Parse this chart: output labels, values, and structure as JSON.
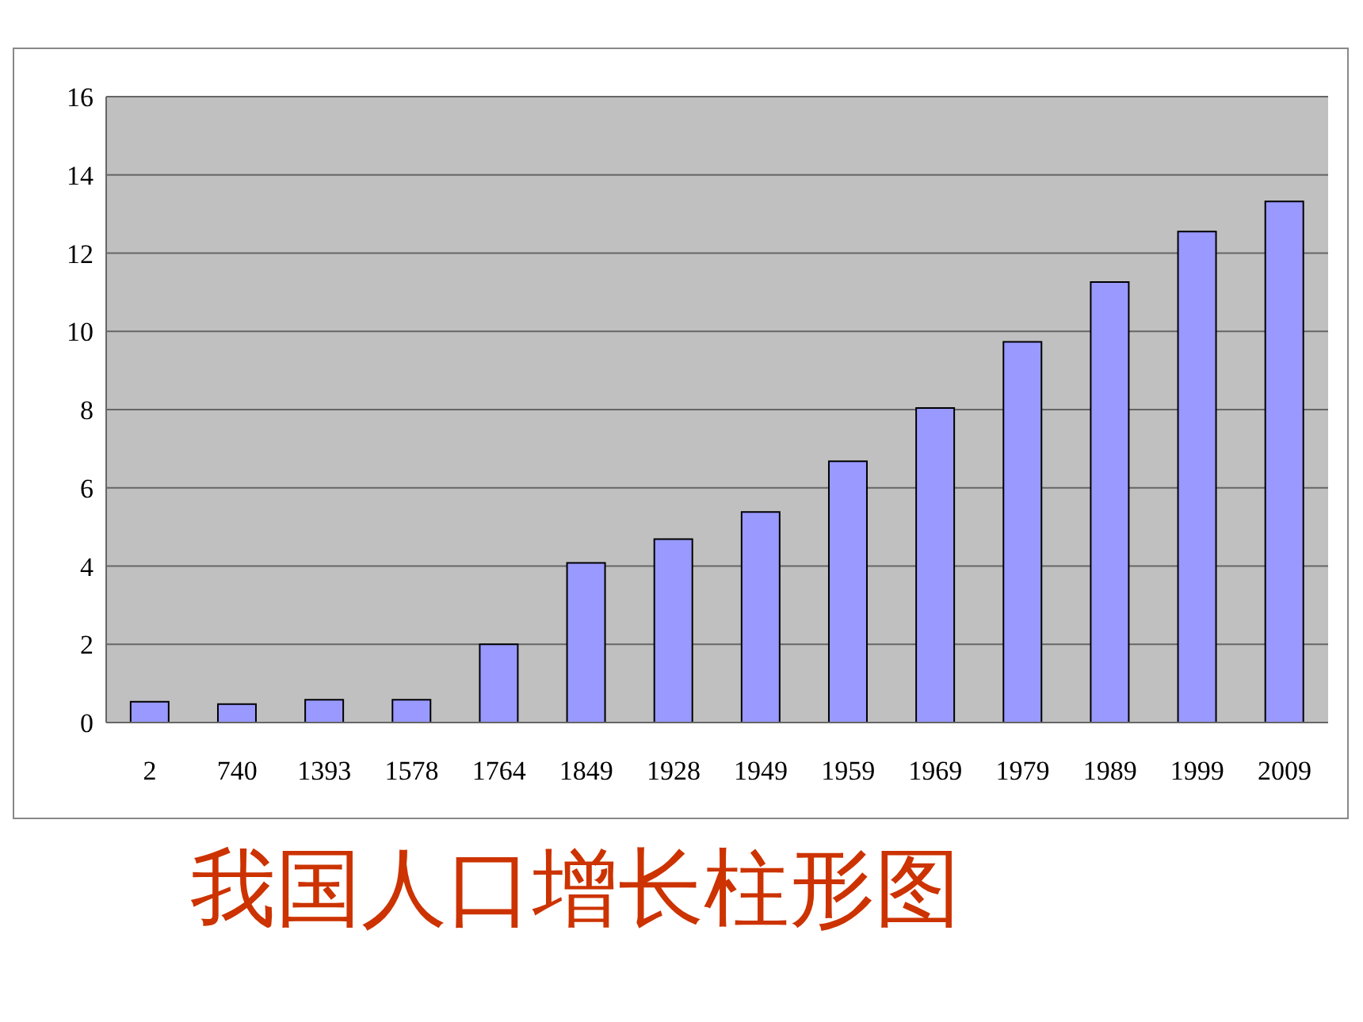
{
  "chart_data": {
    "type": "bar",
    "title": "我国人口增长柱形图",
    "categories": [
      "2",
      "740",
      "1393",
      "1578",
      "1764",
      "1849",
      "1928",
      "1949",
      "1959",
      "1969",
      "1979",
      "1989",
      "1999",
      "2009"
    ],
    "values": [
      0.53,
      0.47,
      0.58,
      0.58,
      2.0,
      4.08,
      4.69,
      5.38,
      6.68,
      8.04,
      9.73,
      11.26,
      12.55,
      13.32
    ],
    "color": "#9999ff",
    "ylim": [
      0,
      16
    ],
    "yticks": [
      0,
      2,
      4,
      6,
      8,
      10,
      12,
      14,
      16
    ],
    "grid": "y"
  }
}
